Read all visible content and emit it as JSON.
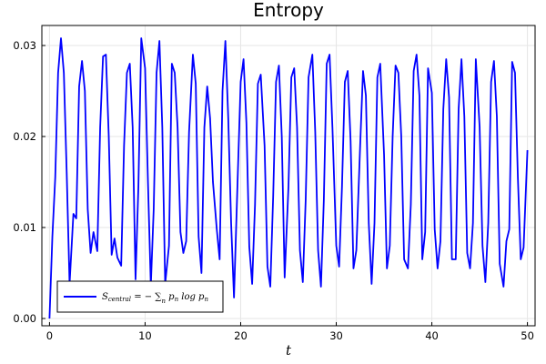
{
  "chart_data": {
    "type": "line",
    "title": "Entropy",
    "xlabel": "t",
    "ylabel": "",
    "xlim": [
      -0.8,
      50.8
    ],
    "ylim": [
      -0.0008,
      0.0322
    ],
    "xticks": [
      0,
      10,
      20,
      30,
      40,
      50
    ],
    "yticks": [
      0.0,
      0.01,
      0.02,
      0.03
    ],
    "xtick_labels": [
      "0",
      "10",
      "20",
      "30",
      "40",
      "50"
    ],
    "ytick_labels": [
      "0.00",
      "0.01",
      "0.02",
      "0.03"
    ],
    "grid": true,
    "legend_position": "bottom-left",
    "legend": {
      "main": "S",
      "sub": "central",
      "rest": " = − ∑",
      "sum_sub": "n",
      "tail": " p",
      "tail_sub": "n",
      "tail2": " log p",
      "tail2_sub": "n"
    },
    "series": [
      {
        "name": "S_central = -∑_n p_n log p_n",
        "color": "#0000ff",
        "x": [
          0.0,
          0.3,
          0.6,
          0.9,
          1.2,
          1.5,
          1.8,
          2.1,
          2.5,
          2.8,
          3.1,
          3.4,
          3.7,
          4.0,
          4.3,
          4.6,
          5.0,
          5.3,
          5.6,
          5.9,
          6.2,
          6.5,
          6.8,
          7.1,
          7.5,
          7.8,
          8.1,
          8.4,
          8.7,
          9.0,
          9.3,
          9.6,
          10.0,
          10.3,
          10.6,
          10.9,
          11.2,
          11.5,
          11.8,
          12.1,
          12.5,
          12.8,
          13.1,
          13.4,
          13.7,
          14.0,
          14.3,
          14.6,
          15.0,
          15.3,
          15.6,
          15.9,
          16.2,
          16.5,
          16.8,
          17.1,
          17.5,
          17.8,
          18.1,
          18.4,
          18.7,
          19.0,
          19.3,
          19.6,
          20.0,
          20.3,
          20.6,
          20.9,
          21.2,
          21.5,
          21.8,
          22.1,
          22.5,
          22.8,
          23.1,
          23.4,
          23.7,
          24.0,
          24.3,
          24.6,
          25.0,
          25.3,
          25.6,
          25.9,
          26.2,
          26.5,
          26.8,
          27.1,
          27.5,
          27.8,
          28.1,
          28.4,
          28.7,
          29.0,
          29.3,
          29.6,
          30.0,
          30.3,
          30.6,
          30.9,
          31.2,
          31.5,
          31.8,
          32.1,
          32.5,
          32.8,
          33.1,
          33.4,
          33.7,
          34.0,
          34.3,
          34.6,
          35.0,
          35.3,
          35.6,
          35.9,
          36.2,
          36.5,
          36.8,
          37.1,
          37.5,
          37.8,
          38.1,
          38.4,
          38.7,
          39.0,
          39.3,
          39.6,
          40.0,
          40.3,
          40.6,
          40.9,
          41.2,
          41.5,
          41.8,
          42.1,
          42.5,
          42.8,
          43.1,
          43.4,
          43.7,
          44.0,
          44.3,
          44.6,
          45.0,
          45.3,
          45.6,
          45.9,
          46.2,
          46.5,
          46.8,
          47.1,
          47.5,
          47.8,
          48.1,
          48.4,
          48.7,
          49.0,
          49.3,
          49.6,
          50.0
        ],
        "y": [
          0.0,
          0.009,
          0.0155,
          0.027,
          0.0308,
          0.027,
          0.016,
          0.0038,
          0.0115,
          0.011,
          0.0255,
          0.0283,
          0.025,
          0.012,
          0.0072,
          0.0095,
          0.0074,
          0.021,
          0.0288,
          0.029,
          0.02,
          0.007,
          0.0088,
          0.0067,
          0.0058,
          0.019,
          0.027,
          0.028,
          0.021,
          0.0043,
          0.0145,
          0.0308,
          0.0275,
          0.015,
          0.0036,
          0.012,
          0.027,
          0.0305,
          0.021,
          0.0038,
          0.008,
          0.028,
          0.027,
          0.021,
          0.0095,
          0.0072,
          0.0085,
          0.0205,
          0.029,
          0.0258,
          0.009,
          0.005,
          0.021,
          0.0255,
          0.022,
          0.015,
          0.0098,
          0.0065,
          0.025,
          0.0305,
          0.022,
          0.0105,
          0.0023,
          0.0125,
          0.026,
          0.0285,
          0.0215,
          0.0079,
          0.0038,
          0.0125,
          0.0258,
          0.0268,
          0.019,
          0.0057,
          0.0035,
          0.0134,
          0.026,
          0.0278,
          0.02,
          0.0045,
          0.0145,
          0.0265,
          0.0275,
          0.021,
          0.0075,
          0.004,
          0.013,
          0.0265,
          0.029,
          0.0205,
          0.0075,
          0.0035,
          0.013,
          0.028,
          0.029,
          0.021,
          0.008,
          0.0057,
          0.0145,
          0.026,
          0.0272,
          0.0195,
          0.0055,
          0.0075,
          0.019,
          0.0272,
          0.0245,
          0.0105,
          0.0038,
          0.0105,
          0.0265,
          0.028,
          0.018,
          0.0055,
          0.008,
          0.02,
          0.0278,
          0.027,
          0.02,
          0.0065,
          0.0055,
          0.0125,
          0.0272,
          0.029,
          0.0245,
          0.0065,
          0.0095,
          0.0275,
          0.0248,
          0.0098,
          0.0055,
          0.0085,
          0.023,
          0.0285,
          0.0243,
          0.0065,
          0.0065,
          0.023,
          0.0285,
          0.0222,
          0.0072,
          0.0055,
          0.0105,
          0.0285,
          0.021,
          0.008,
          0.004,
          0.0105,
          0.026,
          0.0283,
          0.0222,
          0.006,
          0.0035,
          0.0085,
          0.0098,
          0.0282,
          0.027,
          0.0155,
          0.0065,
          0.0078,
          0.0185
        ]
      }
    ]
  }
}
